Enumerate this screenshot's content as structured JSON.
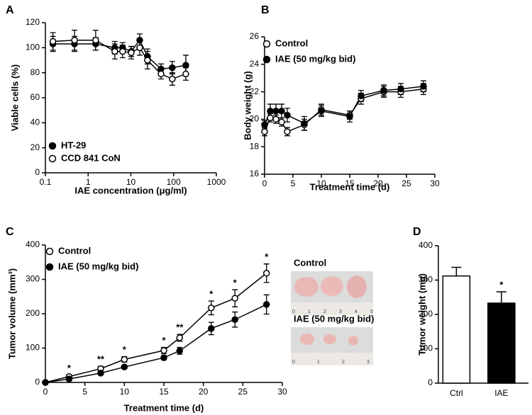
{
  "chart_data": [
    {
      "type": "line",
      "panel_label": "A",
      "x_label": "IAE concentration (μg/ml)",
      "y_label": "Viable cells (%)",
      "xscale": "log",
      "xlim": [
        0.1,
        1000
      ],
      "xticks": [
        0.1,
        1,
        10,
        100,
        1000
      ],
      "ylim": [
        0,
        120
      ],
      "yticks": [
        0,
        20,
        40,
        60,
        80,
        100,
        120
      ],
      "legend": "lower left",
      "x": [
        0.15,
        0.48,
        1.5,
        4.2,
        6.4,
        10.2,
        16.1,
        24.5,
        50.7,
        93,
        193
      ],
      "series": [
        {
          "name": "HT-29",
          "color": "#000000",
          "marker_fill": "#000000",
          "values": [
            103,
            103,
            103,
            100,
            100,
            97,
            106,
            93,
            83,
            84,
            86
          ],
          "errors": [
            6,
            6,
            5,
            5,
            4,
            4,
            5,
            6,
            4,
            5,
            8
          ]
        },
        {
          "name": "CCD 841 CoN",
          "color": "#000000",
          "marker_fill": "#ffffff",
          "values": [
            105,
            106,
            106,
            97,
            97,
            96,
            100,
            90,
            79,
            75,
            79
          ],
          "errors": [
            7,
            8,
            8,
            6,
            5,
            5,
            6,
            7,
            4,
            5,
            5
          ]
        }
      ]
    },
    {
      "type": "line",
      "panel_label": "B",
      "x_label": "Treatment time (d)",
      "y_label": "Body weight (g)",
      "xlim": [
        0,
        30
      ],
      "xticks": [
        0,
        5,
        10,
        15,
        20,
        25,
        30
      ],
      "ylim": [
        16,
        26
      ],
      "yticks": [
        16,
        18,
        20,
        22,
        24,
        26
      ],
      "legend": "upper left",
      "x": [
        0,
        1,
        2,
        3,
        4,
        7,
        10,
        15,
        17,
        21,
        24,
        28
      ],
      "series": [
        {
          "name": "Control",
          "color": "#000000",
          "marker_fill": "#ffffff",
          "values": [
            19.1,
            20.1,
            20.0,
            19.8,
            19.1,
            19.6,
            20.7,
            20.3,
            21.5,
            22.0,
            22.0,
            22.2
          ],
          "errors": [
            0.3,
            0.3,
            0.3,
            0.3,
            0.3,
            0.4,
            0.4,
            0.3,
            0.4,
            0.4,
            0.4,
            0.4
          ]
        },
        {
          "name": "IAE (50 mg/kg bid)",
          "color": "#000000",
          "marker_fill": "#000000",
          "values": [
            19.6,
            20.6,
            20.6,
            20.6,
            20.3,
            19.7,
            20.6,
            20.2,
            21.7,
            22.1,
            22.2,
            22.4
          ],
          "errors": [
            0.3,
            0.5,
            0.5,
            0.5,
            0.5,
            0.5,
            0.4,
            0.4,
            0.4,
            0.4,
            0.4,
            0.4
          ]
        }
      ]
    },
    {
      "type": "line",
      "panel_label": "C",
      "x_label": "Treatment time (d)",
      "y_label": "Tumor volume (mm³)",
      "xlim": [
        0,
        30
      ],
      "xticks": [
        0,
        5,
        10,
        15,
        20,
        25,
        30
      ],
      "ylim": [
        0,
        400
      ],
      "yticks": [
        0,
        100,
        200,
        300,
        400
      ],
      "legend": "upper left",
      "x": [
        0,
        3,
        7,
        10,
        15,
        17,
        21,
        24,
        28
      ],
      "annotations": [
        null,
        "*",
        "**",
        "*",
        "*",
        "**",
        "*",
        "*",
        "*"
      ],
      "series": [
        {
          "name": "Control",
          "color": "#000000",
          "marker_fill": "#ffffff",
          "values": [
            0,
            17,
            40,
            67,
            93,
            130,
            217,
            245,
            318
          ],
          "errors": [
            0,
            5,
            7,
            8,
            9,
            10,
            20,
            25,
            27
          ]
        },
        {
          "name": "IAE (50 mg/kg bid)",
          "color": "#000000",
          "marker_fill": "#000000",
          "values": [
            0,
            10,
            27,
            45,
            72,
            92,
            157,
            183,
            227
          ],
          "errors": [
            0,
            3,
            5,
            5,
            6,
            10,
            18,
            22,
            28
          ]
        }
      ]
    },
    {
      "type": "bar",
      "panel_label": "D",
      "y_label": "Tumor weight (mg)",
      "ylim": [
        0,
        400
      ],
      "yticks": [
        0,
        100,
        200,
        300,
        400
      ],
      "categories": [
        "Ctrl",
        "IAE"
      ],
      "values": [
        312,
        233
      ],
      "errors": [
        25,
        33
      ],
      "colors": [
        "#ffffff",
        "#000000"
      ],
      "annotations": [
        null,
        "*"
      ]
    }
  ],
  "photos": [
    {
      "label": "Control",
      "ruler": [
        "0",
        "1",
        "2",
        "3",
        "4",
        "5"
      ]
    },
    {
      "label": "IAE (50 mg/kg bid)",
      "ruler": [
        "0",
        "1",
        "2",
        "3"
      ]
    }
  ]
}
